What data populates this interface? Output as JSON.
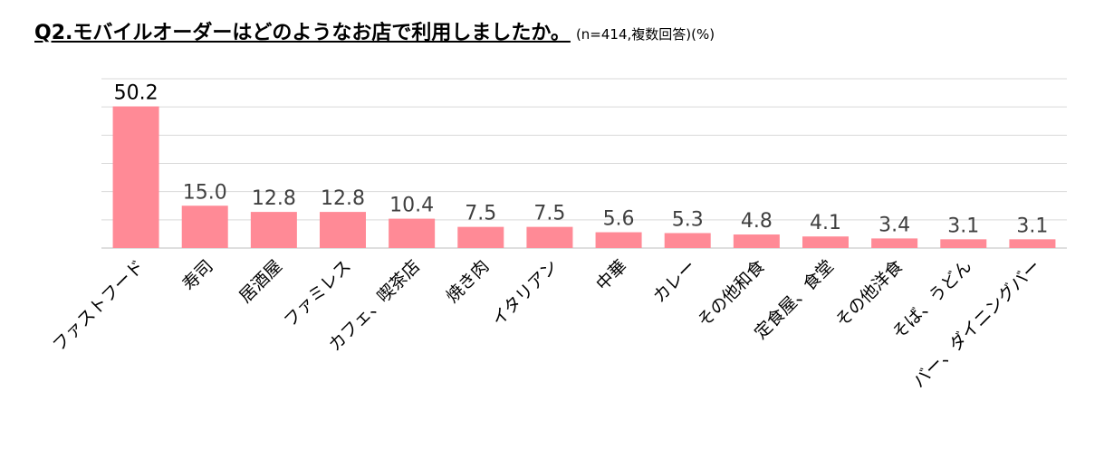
{
  "title": "Q2.モバイルオーダーはどのようなお店で利用しましたか。",
  "subtitle": "(n=414,複数回答)(%)",
  "chart_data": {
    "type": "bar",
    "title": "Q2.モバイルオーダーはどのようなお店で利用しましたか。",
    "subtitle": "(n=414,複数回答)(%)",
    "xlabel": "",
    "ylabel": "",
    "ylim": [
      0,
      60
    ],
    "grid": true,
    "bar_color": "#ff8a96",
    "categories": [
      "ファストフード",
      "寿司",
      "居酒屋",
      "ファミレス",
      "カフェ、喫茶店",
      "焼き肉",
      "イタリアン",
      "中華",
      "カレー",
      "その他和食",
      "定食屋、食堂",
      "その他洋食",
      "そば、うどん",
      "バー、ダイニングバー"
    ],
    "values": [
      50.2,
      15.0,
      12.8,
      12.8,
      10.4,
      7.5,
      7.5,
      5.6,
      5.3,
      4.8,
      4.1,
      3.4,
      3.1,
      3.1
    ],
    "value_labels": [
      "50.2",
      "15.0",
      "12.8",
      "12.8",
      "10.4",
      "7.5",
      "7.5",
      "5.6",
      "5.3",
      "4.8",
      "4.1",
      "3.4",
      "3.1",
      "3.1"
    ]
  }
}
